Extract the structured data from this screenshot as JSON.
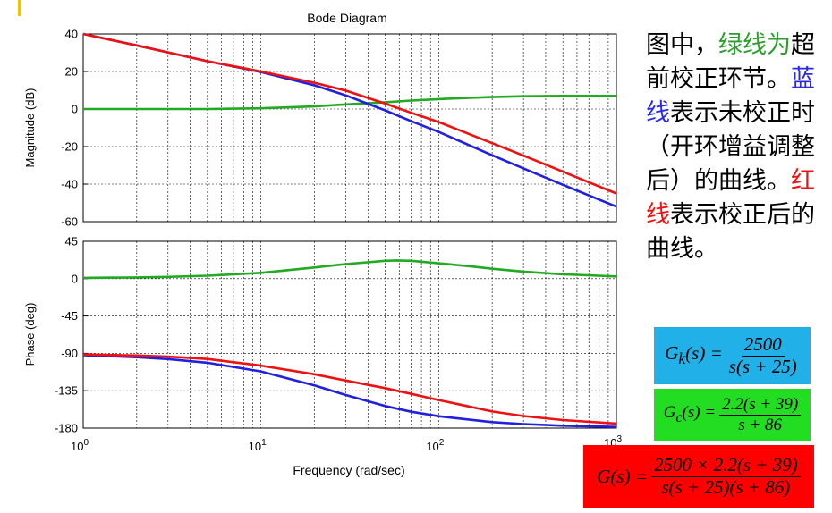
{
  "chart_data": {
    "type": "line",
    "title": "Bode Diagram",
    "xlabel": "Frequency (rad/sec)",
    "xscale": "log",
    "xlim": [
      1,
      1000
    ],
    "x_ticks": [
      {
        "base": "10",
        "exp": "0"
      },
      {
        "base": "10",
        "exp": "1"
      },
      {
        "base": "10",
        "exp": "2"
      },
      {
        "base": "10",
        "exp": "3"
      }
    ],
    "grid": true,
    "panels": [
      {
        "name": "magnitude",
        "ylabel": "Magnitude (dB)",
        "ylim": [
          -60,
          40
        ],
        "yticks": [
          "40",
          "20",
          "0",
          "-20",
          "-40",
          "-60"
        ],
        "series": [
          {
            "color": "#22aa22",
            "x": [
              1,
              2,
              5,
              10,
              20,
              30,
              50,
              70,
              100,
              150,
              200,
              300,
              500,
              1000
            ],
            "y": [
              0,
              0,
              0,
              0.4,
              1.4,
              2.5,
              3.6,
              4.5,
              5.3,
              6.0,
              6.4,
              6.8,
              7.0,
              7.0
            ]
          },
          {
            "color": "#2020dd",
            "x": [
              1,
              2,
              3,
              5,
              10,
              20,
              30,
              50,
              70,
              100,
              200,
              300,
              500,
              1000
            ],
            "y": [
              40,
              33.9,
              30.2,
              25.5,
              19.7,
              12.6,
              7.3,
              -0.7,
              -6.5,
              -12.2,
              -24.6,
              -31.6,
              -40.4,
              -52
            ]
          },
          {
            "color": "#ee1111",
            "x": [
              1,
              2,
              3,
              5,
              10,
              20,
              30,
              50,
              70,
              100,
              200,
              300,
              500,
              1000
            ],
            "y": [
              40,
              33.9,
              30.2,
              25.5,
              20,
              14,
              9.8,
              2.9,
              -2.0,
              -6.9,
              -18.2,
              -24.8,
              -33.4,
              -45
            ]
          }
        ]
      },
      {
        "name": "phase",
        "ylabel": "Phase (deg)",
        "ylim": [
          -180,
          45
        ],
        "yticks": [
          "45",
          "0",
          "-45",
          "-90",
          "-135",
          "-180"
        ],
        "series": [
          {
            "color": "#22aa22",
            "x": [
              1,
              2,
              3,
              5,
              10,
              20,
              30,
              50,
              58,
              70,
              100,
              150,
              200,
              300,
              500,
              1000
            ],
            "y": [
              1,
              1.5,
              2.2,
              3.6,
              7,
              13.5,
              17.5,
              21.5,
              22,
              21.5,
              18.5,
              15,
              12,
              8.5,
              5.3,
              2.7
            ]
          },
          {
            "color": "#2020dd",
            "x": [
              1,
              2,
              3,
              5,
              10,
              20,
              30,
              50,
              70,
              100,
              200,
              300,
              500,
              1000
            ],
            "y": [
              -92.3,
              -94.6,
              -96.9,
              -101.3,
              -111.8,
              -128.7,
              -140.2,
              -153.4,
              -160.3,
              -165.7,
              -172.8,
              -175.2,
              -177.1,
              -178.6
            ]
          },
          {
            "color": "#ee1111",
            "x": [
              1,
              2,
              3,
              5,
              10,
              20,
              30,
              50,
              70,
              100,
              200,
              300,
              500,
              1000
            ],
            "y": [
              -91.3,
              -92.6,
              -94.0,
              -96.8,
              -104.8,
              -115.2,
              -122.7,
              -131.9,
              -138.8,
              -146.2,
              -160.0,
              -165.5,
              -170.3,
              -174.5
            ]
          }
        ]
      }
    ]
  },
  "description": [
    {
      "text": "图中，",
      "color": "#000000"
    },
    {
      "text": "绿线为",
      "color": "#2aa02a"
    },
    {
      "text": "超前校正环节。",
      "color": "#000000"
    },
    {
      "text": "蓝线",
      "color": "#2a2ae6"
    },
    {
      "text": "表示未校正时（开环增益调整后）的曲线。",
      "color": "#000000"
    },
    {
      "text": "红线",
      "color": "#ee1111"
    },
    {
      "text": "表示校正后的曲线。",
      "color": "#000000"
    }
  ],
  "formulas": {
    "gk": {
      "lhs": "G",
      "sub": "k",
      "arg": "(s) =",
      "num": "2500",
      "den": "s(s + 25)"
    },
    "gc": {
      "lhs": "G",
      "sub": "c",
      "arg": "(s) =",
      "num": "2.2(s + 39)",
      "den": "s + 86"
    },
    "g": {
      "lhs": "G",
      "sub": "",
      "arg": "(s) =",
      "num": "2500 × 2.2(s + 39)",
      "den": "s(s + 25)(s + 86)"
    }
  }
}
